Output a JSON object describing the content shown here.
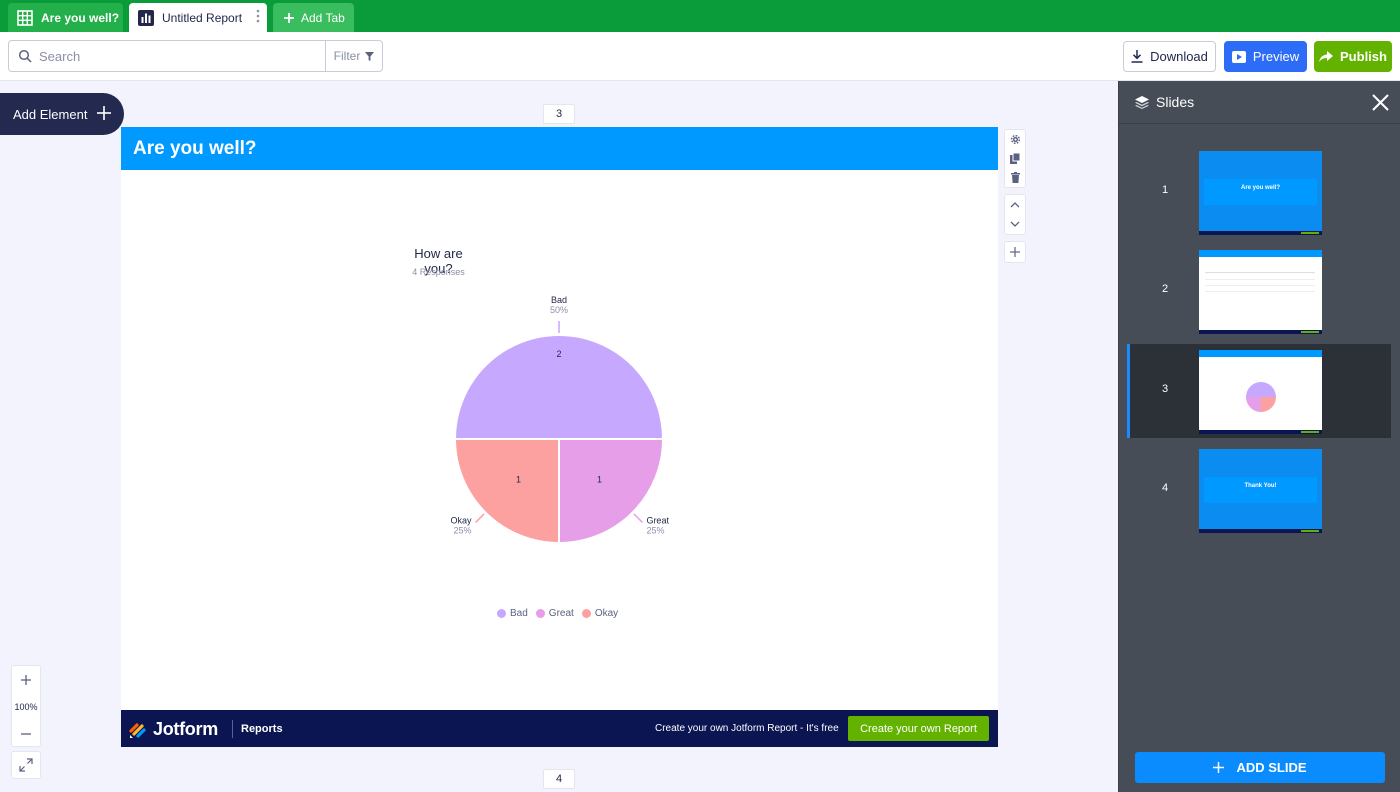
{
  "tabs": [
    {
      "label": "Are you well?",
      "icon": "table-icon"
    },
    {
      "label": "Untitled Report",
      "icon": "report-icon"
    },
    {
      "label": "Add Tab",
      "icon": "plus-icon"
    }
  ],
  "toolbar": {
    "search_placeholder": "Search",
    "filter_label": "Filter",
    "download_label": "Download",
    "preview_label": "Preview",
    "publish_label": "Publish"
  },
  "canvas": {
    "add_element_label": "Add Element",
    "page_above": "3",
    "page_below": "4",
    "zoom_value": "100%"
  },
  "slide": {
    "header_title": "Are you well?",
    "footer": {
      "brand": "Jotform",
      "product": "Reports",
      "promo_text": "Create your own Jotform Report - It's free",
      "cta_label": "Create your own Report"
    }
  },
  "chart_data": {
    "type": "pie",
    "title": "How are you?",
    "subtitle": "4 Responses",
    "slices": [
      {
        "label": "Bad",
        "value": 2,
        "percent": "50%",
        "color": "#c6a9ff"
      },
      {
        "label": "Great",
        "value": 1,
        "percent": "25%",
        "color": "#e59ee7"
      },
      {
        "label": "Okay",
        "value": 1,
        "percent": "25%",
        "color": "#fca19f"
      }
    ],
    "legend": [
      "Bad",
      "Great",
      "Okay"
    ],
    "legend_position": "bottom"
  },
  "panel": {
    "title": "Slides",
    "add_slide_label": "ADD SLIDE",
    "slides": [
      {
        "num": "1",
        "thumb_title": "Are you well?"
      },
      {
        "num": "2",
        "thumb_title": ""
      },
      {
        "num": "3",
        "thumb_title": ""
      },
      {
        "num": "4",
        "thumb_title": "Thank You!"
      }
    ],
    "active_slide": 3
  },
  "colors": {
    "tabbar": "#0a9b3b",
    "slide_header": "#0099ff",
    "footer": "#0a1551",
    "publish": "#64b200",
    "preview": "#2c6cf6"
  }
}
